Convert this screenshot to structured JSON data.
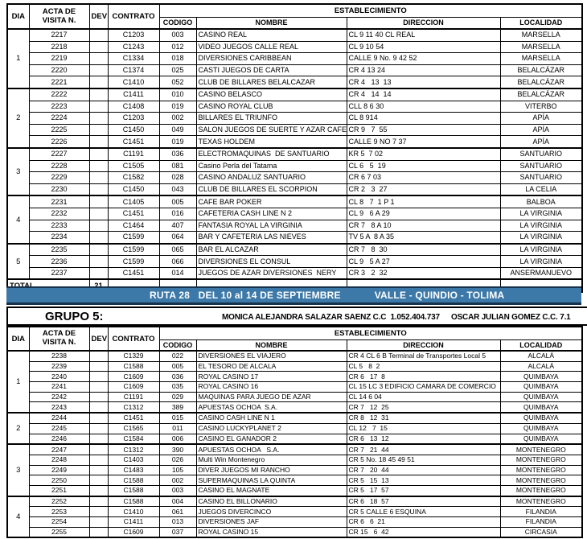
{
  "colors": {
    "banner_bg": "#3c78a8",
    "banner_edge": "#16324c",
    "grid": "#000000"
  },
  "columns": {
    "dia": "DIA",
    "acta": "ACTA DE\nVISITA N.",
    "dev": "DEV",
    "contrato": "CONTRATO",
    "establecimiento": "ESTABLECIMIENTO",
    "codigo": "CODIGO",
    "nombre": "NOMBRE",
    "direccion": "DIRECCION",
    "localidad": "LOCALIDAD"
  },
  "table1": {
    "groups": [
      {
        "dia": "1",
        "rows": [
          [
            "2217",
            "C1203",
            "003",
            "CASINO REAL",
            "CL 9 11 40 CL REAL",
            "MARSELLA"
          ],
          [
            "2218",
            "C1243",
            "012",
            "VIDEO JUEGOS CALLE REAL",
            "CL 9 10 54",
            "MARSELLA"
          ],
          [
            "2219",
            "C1334",
            "018",
            "DIVERSIONES CARIBBEAN",
            "CALLE 9 No. 9 42 52",
            "MARSELLA"
          ],
          [
            "2220",
            "C1374",
            "025",
            "CASTI JUEGOS DE CARTA",
            "CR 4 13 24",
            "BELALCÁZAR"
          ],
          [
            "2221",
            "C1410",
            "052",
            "CLUB DE BILLARES BELALCAZAR",
            "CR 4   13  13",
            "BELALCÁZAR"
          ]
        ]
      },
      {
        "dia": "2",
        "rows": [
          [
            "2222",
            "C1411",
            "010",
            "CASINO BELASCO",
            "CR 4   14  14",
            "BELALCÁZAR"
          ],
          [
            "2223",
            "C1408",
            "019",
            "CASINO ROYAL CLUB",
            "CLL 8 6 30",
            "VITERBO"
          ],
          [
            "2224",
            "C1203",
            "002",
            "BILLARES EL TRIUNFO",
            "CL 8 914",
            "APÍA"
          ],
          [
            "2225",
            "C1450",
            "049",
            "SALON JUEGOS DE SUERTE Y AZAR CAFE N",
            "CR 9   7  55",
            "APÍA"
          ],
          [
            "2226",
            "C1451",
            "019",
            "TEXAS HOLDEM",
            "CALLE 9 NO 7 37",
            "APÍA"
          ]
        ]
      },
      {
        "dia": "3",
        "rows": [
          [
            "2227",
            "C1191",
            "036",
            "ELECTROMAQUINAS  DE SANTUARIO",
            "KR 5  7 02",
            "SANTUARIO"
          ],
          [
            "2228",
            "C1505",
            "081",
            "Casino Perla del Tatama",
            "CL 6   5  19",
            "SANTUARIO"
          ],
          [
            "2229",
            "C1582",
            "028",
            "CASINO ANDALUZ SANTUARIO",
            "CR 6 7 03",
            "SANTUARIO"
          ],
          [
            "2230",
            "C1450",
            "043",
            "CLUB DE BILLARES EL SCORPION",
            "CR 2   3  27",
            "LA CELIA"
          ]
        ]
      },
      {
        "dia": "4",
        "rows": [
          [
            "2231",
            "C1405",
            "005",
            "CAFE BAR POKER",
            "CL 8   7  1 P 1",
            "BALBOA"
          ],
          [
            "2232",
            "C1451",
            "016",
            "CAFETERIA CASH LINE N 2",
            "CL 9   6 A 29",
            "LA VIRGINIA"
          ],
          [
            "2233",
            "C1464",
            "407",
            "FANTASIA ROYAL LA VIRGINIA",
            "CR 7   8 A 10",
            "LA VIRGINIA"
          ],
          [
            "2234",
            "C1599",
            "064",
            "BAR Y CAFETERIA LAS NIEVES",
            "TV 5 A  8 A 35",
            "LA VIRGINIA"
          ]
        ]
      },
      {
        "dia": "5",
        "rows": [
          [
            "2235",
            "C1599",
            "065",
            "BAR EL ALCAZAR",
            "CR 7   8  30",
            "LA VIRGINIA"
          ],
          [
            "2236",
            "C1599",
            "066",
            "DIVERSIONES EL CONSUL",
            "CL 9   5 A 27",
            "LA VIRGINIA"
          ],
          [
            "2237",
            "C1451",
            "014",
            "JUEGOS DE AZAR DIVERSIONES  NERY",
            "CR 3   2  32",
            "ANSERMANUEVO"
          ]
        ]
      }
    ],
    "total": {
      "label": "TOTAL",
      "dev": "21"
    }
  },
  "banner": {
    "ruta": "RUTA 28   DEL 10 al 14 DE SEPTIEMBRE",
    "region": "VALLE - QUINDIO - TOLIMA"
  },
  "grupo": {
    "label": "GRUPO 5:",
    "agent1": "MONICA ALEJANDRA SALAZAR SAENZ C.C  1.052.404.737",
    "agent2": "OSCAR JULIAN GOMEZ C.C. 7.1"
  },
  "table2": {
    "groups": [
      {
        "dia": "1",
        "rows": [
          [
            "2238",
            "C1329",
            "022",
            "DIVERSIONES EL VIAJERO",
            "CR 4 CL 6 B Terminal de Transportes Local 5",
            "ALCALÁ"
          ],
          [
            "2239",
            "C1588",
            "005",
            "EL TESORO DE ALCALA",
            "CL 5   8  2",
            "ALCALÁ"
          ],
          [
            "2240",
            "C1609",
            "036",
            "ROYAL CASINO 17",
            "CR 6   17  8",
            "QUIMBAYA"
          ],
          [
            "2241",
            "C1609",
            "035",
            "ROYAL CASINO 16",
            "CL 15 LC 3 EDIFICIO CAMARA DE COMERCIO",
            "QUIMBAYA"
          ],
          [
            "2242",
            "C1191",
            "029",
            "MAQUINAS PARA JUEGO DE AZAR",
            "CL 14 6 04",
            "QUIMBAYA"
          ],
          [
            "2243",
            "C1312",
            "389",
            "APUESTAS OCHOA  S.A.",
            "CR 7   12  25",
            "QUIMBAYA"
          ]
        ]
      },
      {
        "dia": "2",
        "rows": [
          [
            "2244",
            "C1451",
            "015",
            "CASINO CASH LINE N 1",
            "CR 8   12  31",
            "QUIMBAYA"
          ],
          [
            "2245",
            "C1565",
            "011",
            "CASINO LUCKYPLANET 2",
            "CL 12   7  15",
            "QUIMBAYA"
          ],
          [
            "2246",
            "C1584",
            "006",
            "CASINO EL GANADOR 2",
            "CR 6   13  12",
            "QUIMBAYA"
          ]
        ]
      },
      {
        "dia": "3",
        "rows": [
          [
            "2247",
            "C1312",
            "390",
            "APUESTAS OCHOA   S.A.",
            "CR 7   21  44",
            "MONTENEGRO"
          ],
          [
            "2248",
            "C1403",
            "026",
            "Multi Win Montenegro",
            "CR 5 No. 18 45 49 51",
            "MONTENEGRO"
          ],
          [
            "2249",
            "C1483",
            "105",
            "DIVER JUEGOS MI RANCHO",
            "CR 7   20  44",
            "MONTENEGRO"
          ],
          [
            "2250",
            "C1588",
            "002",
            "SUPERMAQUINAS LA QUINTA",
            "CR 5   15  13",
            "MONTENEGRO"
          ],
          [
            "2251",
            "C1588",
            "003",
            "CASINO EL MAGNATE",
            "CR 5   17  57",
            "MONTENEGRO"
          ]
        ]
      },
      {
        "dia": "4",
        "rows": [
          [
            "2252",
            "C1588",
            "004",
            "CASINO EL BILLONARIO",
            "CR 6   18  57",
            "MONTENEGRO"
          ],
          [
            "2253",
            "C1410",
            "061",
            "JUEGOS DIVERCINCO",
            "CR 5 CALLE 6 ESQUINA",
            "FILANDIA"
          ],
          [
            "2254",
            "C1411",
            "013",
            "DIVERSIONES JAF",
            "CR 6   6  21",
            "FILANDIA"
          ],
          [
            "2255",
            "C1609",
            "037",
            "ROYAL CASINO 15",
            "CR 15   6  42",
            "CIRCASIA"
          ]
        ]
      }
    ]
  }
}
